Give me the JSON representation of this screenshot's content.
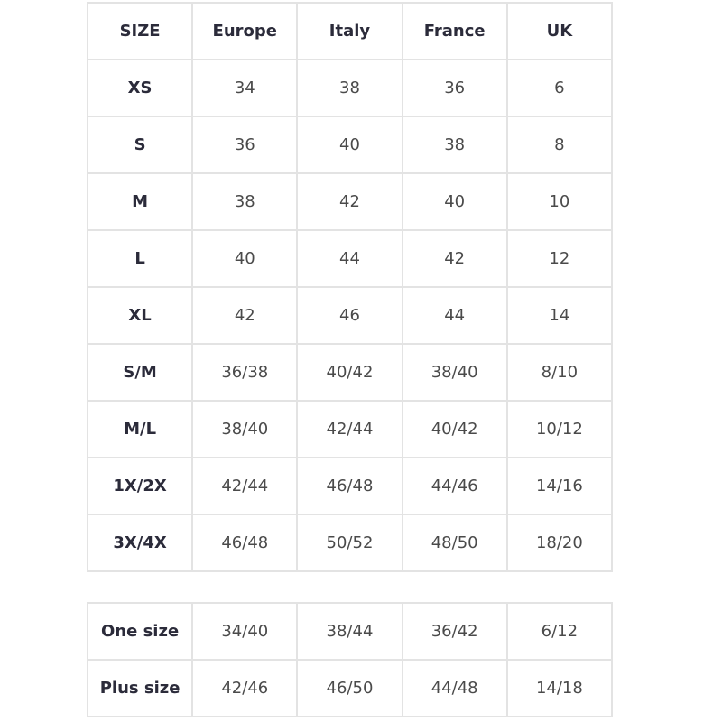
{
  "size_table": {
    "headers": [
      "SIZE",
      "Europe",
      "Italy",
      "France",
      "UK"
    ],
    "rows": [
      [
        "XS",
        "34",
        "38",
        "36",
        "6"
      ],
      [
        "S",
        "36",
        "40",
        "38",
        "8"
      ],
      [
        "M",
        "38",
        "42",
        "40",
        "10"
      ],
      [
        "L",
        "40",
        "44",
        "42",
        "12"
      ],
      [
        "XL",
        "42",
        "46",
        "44",
        "14"
      ],
      [
        "S/M",
        "36/38",
        "40/42",
        "38/40",
        "8/10"
      ],
      [
        "M/L",
        "38/40",
        "42/44",
        "40/42",
        "10/12"
      ],
      [
        "1X/2X",
        "42/44",
        "46/48",
        "44/46",
        "14/16"
      ],
      [
        "3X/4X",
        "46/48",
        "50/52",
        "48/50",
        "18/20"
      ]
    ]
  },
  "special_sizes_table": {
    "rows": [
      [
        "One size",
        "34/40",
        "38/44",
        "36/42",
        "6/12"
      ],
      [
        "Plus size",
        "42/46",
        "46/50",
        "44/48",
        "14/18"
      ]
    ]
  }
}
